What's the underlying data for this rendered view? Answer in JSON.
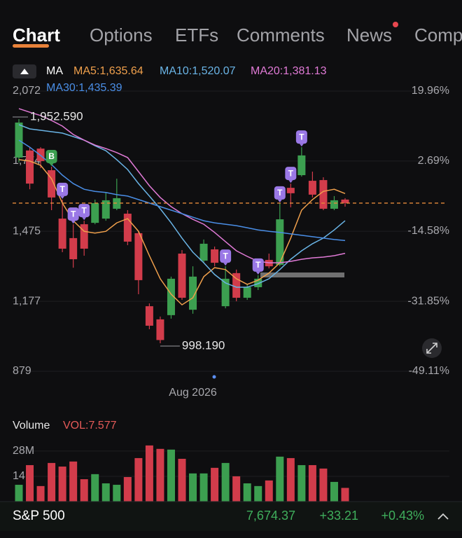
{
  "tabs": [
    "Chart",
    "Options",
    "ETFs",
    "Comments",
    "News",
    "Comp"
  ],
  "chart_data": [
    {
      "type": "candlestick",
      "indicator": "MA",
      "categories": [
        null,
        null,
        null,
        null,
        null,
        null,
        null,
        null,
        null,
        null,
        null,
        null,
        null,
        null,
        null,
        null,
        "Aug 2026",
        null,
        null,
        null,
        null,
        null,
        null,
        null,
        null,
        null,
        null,
        null,
        null,
        null,
        null
      ],
      "open": [
        1789,
        1819,
        1827,
        1735,
        1529,
        1446,
        1505,
        1511,
        1529,
        1571,
        1550,
        1467,
        1156,
        1100,
        1118,
        1380,
        1141,
        1350,
        1398,
        1156,
        1297,
        1192,
        1237,
        1353,
        1332,
        1660,
        1714,
        1690,
        1693,
        1571,
        1610
      ],
      "high": [
        1952.59,
        1833,
        1833,
        1750,
        1610,
        1505,
        1520,
        1610,
        1640,
        1699,
        1565,
        1476,
        1168,
        1112,
        1282,
        1395,
        1326,
        1440,
        1410,
        1326,
        1312,
        1252,
        1288,
        1380,
        1595,
        1678,
        1833,
        1729,
        1705,
        1625,
        1616
      ],
      "low": [
        1768,
        1654,
        1744,
        1565,
        1386,
        1320,
        1371,
        1505,
        1520,
        1565,
        1416,
        1207,
        1058,
        998.19,
        1103,
        1183,
        1124,
        1341,
        1326,
        1147,
        1177,
        1183,
        1225,
        1317,
        1326,
        1577,
        1708,
        1619,
        1565,
        1565,
        1580
      ],
      "close": [
        1938,
        1678,
        1774,
        1619,
        1401,
        1356,
        1401,
        1595,
        1607,
        1616,
        1431,
        1267,
        1073,
        1012,
        1273,
        1192,
        1282,
        1422,
        1341,
        1273,
        1192,
        1237,
        1273,
        1326,
        1526,
        1637,
        1798,
        1631,
        1571,
        1607,
        1595
      ],
      "up_color": "#3c9f50",
      "down_color": "#d23c4b",
      "ylim": [
        879,
        2072
      ],
      "yticks": [
        {
          "value": 2072,
          "label": "2,072"
        },
        {
          "value": 1774,
          "label": "1,774"
        },
        {
          "value": 1475,
          "label": "1,475"
        },
        {
          "value": 1177,
          "label": "1,177"
        },
        879
      ],
      "y2lim": [
        -49.11,
        19.96
      ],
      "y2ticks": [
        {
          "value": 19.96,
          "label": "19.96%"
        },
        {
          "value": 2.69,
          "label": "2.69%"
        },
        {
          "value": -14.58,
          "label": "-14.58%"
        },
        {
          "value": -31.85,
          "label": "-31.85%"
        },
        {
          "value": -49.11,
          "label": "-49.11%"
        }
      ],
      "grid": true,
      "ma": [
        {
          "label": "MA5:1,635.64",
          "color": "#f0a04c",
          "values": [
            1780,
            1774,
            1756,
            1699,
            1595,
            1520,
            1475,
            1467,
            1475,
            1511,
            1529,
            1475,
            1371,
            1273,
            1207,
            1162,
            1192,
            1282,
            1320,
            1312,
            1273,
            1249,
            1267,
            1297,
            1341,
            1446,
            1565,
            1610,
            1645,
            1654,
            1635.64
          ]
        },
        {
          "label": "MA10:1,520.07",
          "color": "#6ab4e6",
          "values": [
            1929,
            1911,
            1905,
            1899,
            1893,
            1878,
            1863,
            1839,
            1818,
            1780,
            1738,
            1678,
            1625,
            1571,
            1511,
            1446,
            1386,
            1341,
            1291,
            1255,
            1237,
            1237,
            1252,
            1273,
            1312,
            1356,
            1392,
            1422,
            1446,
            1481,
            1520.07
          ]
        },
        {
          "label": "MA20:1,381.13",
          "color": "#e07ad6",
          "values": [
            1997,
            1982,
            1968,
            1947,
            1923,
            1887,
            1863,
            1842,
            1827,
            1810,
            1789,
            1729,
            1669,
            1619,
            1580,
            1550,
            1526,
            1505,
            1470,
            1431,
            1392,
            1368,
            1347,
            1341,
            1341,
            1347,
            1356,
            1362,
            1365,
            1371,
            1381.13
          ]
        },
        {
          "label": "MA30:1,435.39",
          "color": "#4a8ee6",
          "values": [
            1863,
            1833,
            1798,
            1759,
            1714,
            1678,
            1654,
            1645,
            1640,
            1631,
            1625,
            1610,
            1595,
            1580,
            1565,
            1550,
            1535,
            1520,
            1511,
            1505,
            1499,
            1490,
            1481,
            1475,
            1470,
            1464,
            1458,
            1452,
            1446,
            1440,
            1435.39
          ]
        }
      ],
      "markers": [
        {
          "index": 3,
          "label": "B",
          "color": "#3c9f50"
        },
        {
          "index": 4,
          "label": "T",
          "color": "#9a78e6"
        },
        {
          "index": 5,
          "label": "T",
          "color": "#9a78e6"
        },
        {
          "index": 6,
          "label": "T",
          "color": "#9a78e6"
        },
        {
          "index": 19,
          "label": "T",
          "color": "#9a78e6"
        },
        {
          "index": 22,
          "label": "T",
          "color": "#9a78e6"
        },
        {
          "index": 24,
          "label": "T",
          "color": "#9a78e6"
        },
        {
          "index": 25,
          "label": "T",
          "color": "#9a78e6"
        },
        {
          "index": 26,
          "label": "T",
          "color": "#9a78e6"
        }
      ],
      "annotations": [
        {
          "index": 0,
          "at": "high",
          "text": "1,952.590"
        },
        {
          "index": 13,
          "at": "low",
          "text": "998.190"
        }
      ]
    },
    {
      "type": "bar",
      "title": "Volume",
      "value_label": "VOL:7.577",
      "values": [
        9.3,
        20.2,
        8.6,
        21.4,
        19.4,
        22.2,
        12.4,
        15.2,
        10.1,
        9.3,
        13.6,
        24.1,
        31.1,
        29.2,
        28.8,
        23.7,
        15.6,
        15.6,
        18.7,
        21.4,
        14.0,
        10.1,
        8.6,
        11.7,
        24.9,
        24.1,
        20.2,
        20.2,
        18.3,
        10.9,
        7.577
      ],
      "ylim": [
        0,
        33
      ],
      "yticks": [
        {
          "value": 28,
          "label": "28M"
        },
        14
      ],
      "grid": true
    }
  ],
  "quote": {
    "name": "S&P 500",
    "price": "7,674.37",
    "change": "+33.21",
    "change_pct": "+0.43%"
  }
}
